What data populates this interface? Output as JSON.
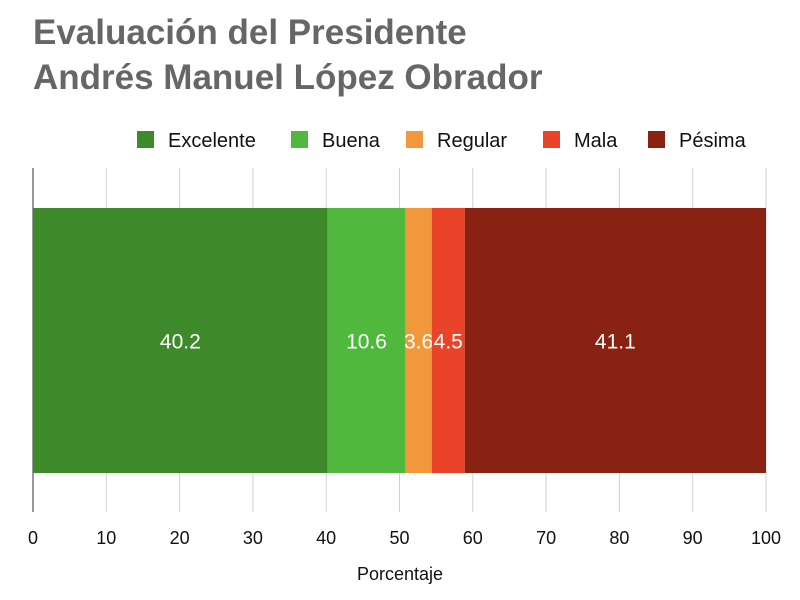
{
  "chart_data": {
    "type": "bar",
    "orientation": "horizontal-stacked",
    "title": [
      "Evaluación del Presidente",
      "Andrés Manuel López Obrador"
    ],
    "xlabel": "Porcentaje",
    "ylabel": "",
    "xlim": [
      0,
      100
    ],
    "xticks": [
      "0",
      "10",
      "20",
      "30",
      "40",
      "50",
      "60",
      "70",
      "80",
      "90",
      "100"
    ],
    "grid": true,
    "legend_position": "top-right",
    "series": [
      {
        "name": "Excelente",
        "values": [
          40.2
        ],
        "label": "40.2",
        "color": "#3e8a2b"
      },
      {
        "name": "Buena",
        "values": [
          10.6
        ],
        "label": "10.6",
        "color": "#50b83d"
      },
      {
        "name": "Regular",
        "values": [
          3.6
        ],
        "label": "3.6",
        "color": "#f0983b"
      },
      {
        "name": "Mala",
        "values": [
          4.5
        ],
        "label": "4.5",
        "color": "#e9432a"
      },
      {
        "name": "Pésima",
        "values": [
          41.1
        ],
        "label": "41.1",
        "color": "#8a2214"
      }
    ]
  }
}
